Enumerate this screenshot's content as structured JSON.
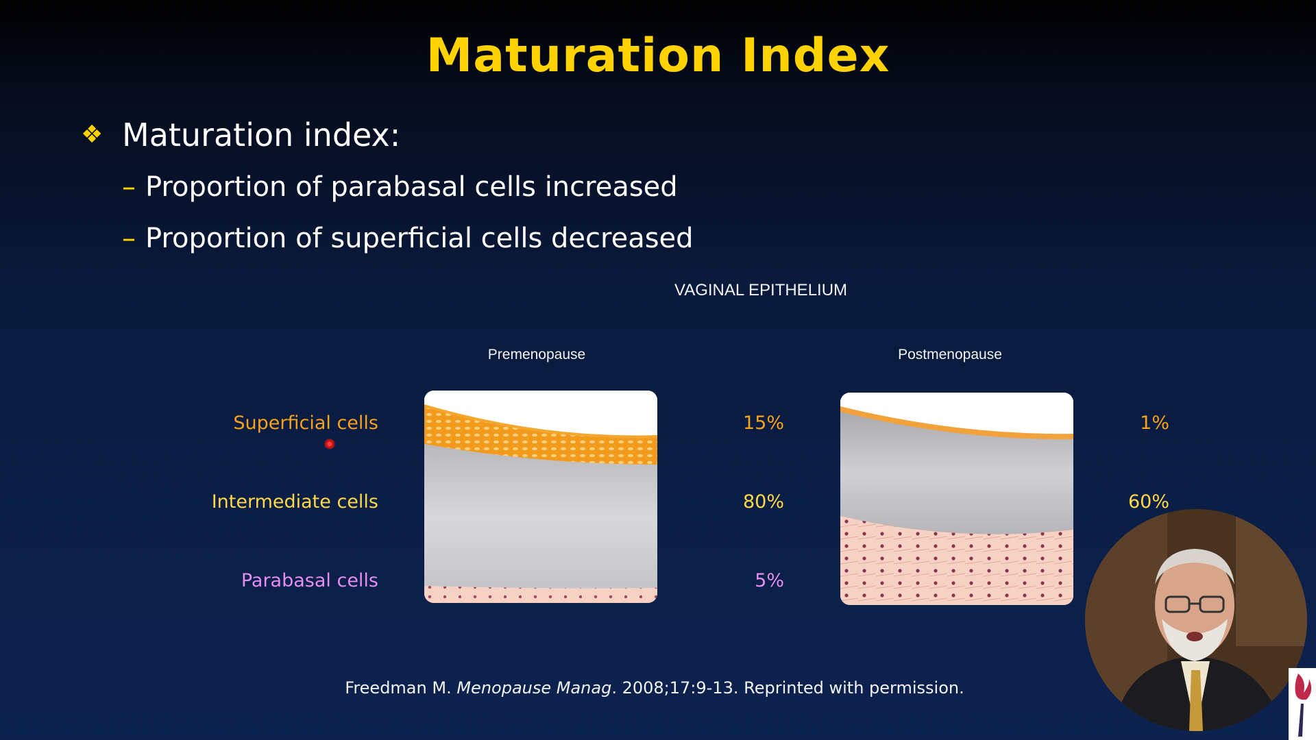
{
  "slide": {
    "title": "Maturation Index",
    "bullet": "Maturation index:",
    "sub_bullets": [
      "Proportion of parabasal cells increased",
      "Proportion of superficial cells decreased"
    ],
    "bullet_symbol": "❖",
    "dash_symbol": "–"
  },
  "figure": {
    "title": "VAGINAL EPITHELIUM",
    "columns": [
      "Premenopause",
      "Postmenopause"
    ],
    "rows": [
      {
        "label": "Superficial cells",
        "pre": "15%",
        "post": "1%",
        "color": "#f7a21b"
      },
      {
        "label": "Intermediate cells",
        "pre": "80%",
        "post": "60%",
        "color": "#ffd84a"
      },
      {
        "label": "Parabasal cells",
        "pre": "5%",
        "post": "",
        "color": "#e38ef0"
      }
    ]
  },
  "citation": {
    "author": "Freedman M.",
    "journal": "Menopause Manag",
    "rest": ". 2008;17:9-13. Reprinted with permission."
  },
  "colors": {
    "accent": "#ffd200",
    "background_top": "#000000",
    "background_bottom": "#0c2250"
  }
}
